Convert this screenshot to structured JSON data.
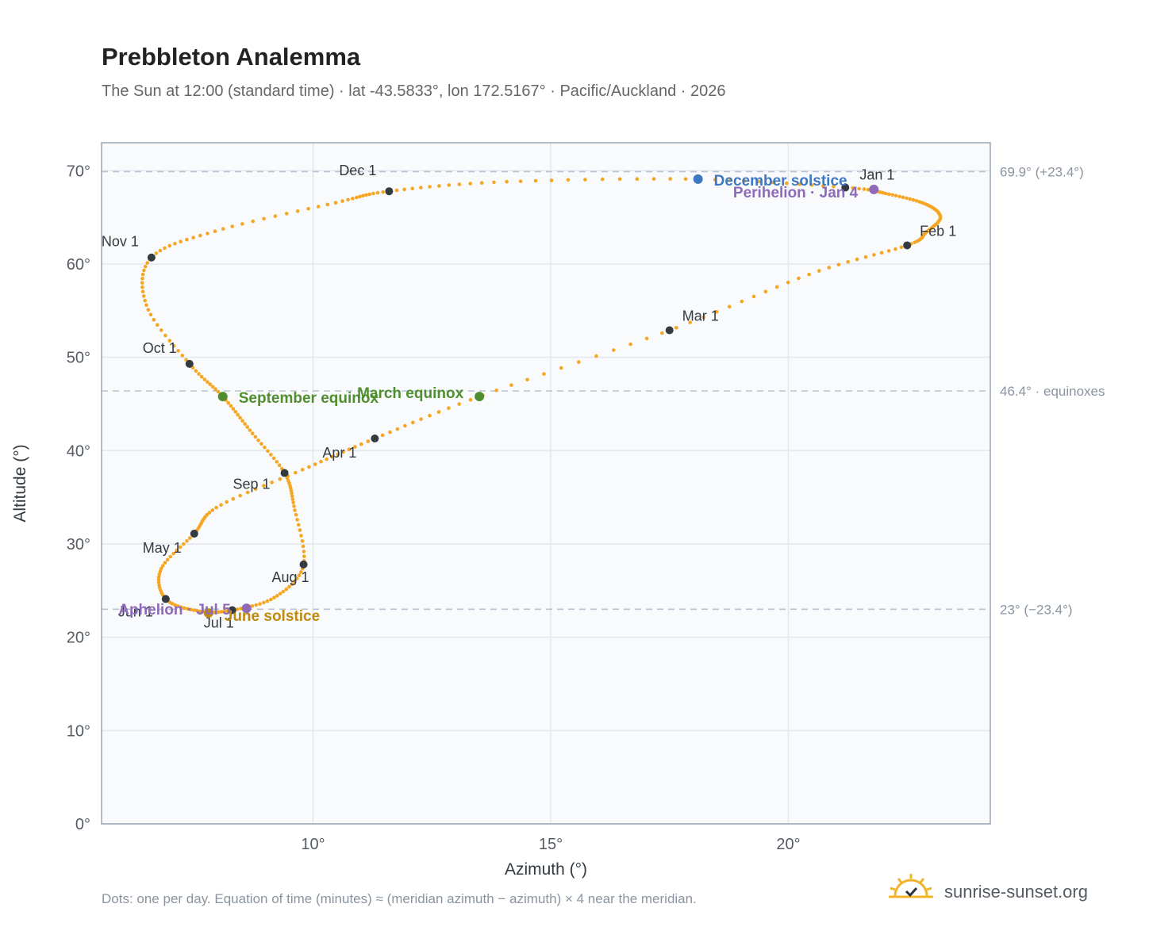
{
  "title": "Prebbleton Analemma",
  "subtitle": "The Sun at 12:00 (standard time) · lat -43.5833°, lon 172.5167° · Pacific/Auckland · 2026",
  "footnote": "Dots: one per day. Equation of time (minutes) ≈ (meridian azimuth − azimuth) × 4 near the meridian.",
  "brand": {
    "name": "sunrise-sunset.org",
    "logo_icon": "sun-check-icon"
  },
  "colors": {
    "path": "#f5a623",
    "month_marker": "#333a40",
    "december_solstice": "#3d78c0",
    "june_solstice": "#c08a0e",
    "equinox": "#4f8f2f",
    "apsis": "#8e6ab8",
    "reference_line": "#b8c4d2",
    "plot_bg": "#f8fafc",
    "grid": "#e3e8ee",
    "frame": "#9aa5b2"
  },
  "chart_data": {
    "type": "scatter",
    "xlabel": "Azimuth (°)",
    "ylabel": "Altitude (°)",
    "xlim": [
      5.55,
      24.25
    ],
    "ylim": [
      0,
      73
    ],
    "x_ticks": [
      10,
      15,
      20
    ],
    "y_ticks": [
      0,
      10,
      20,
      30,
      40,
      50,
      60,
      70
    ],
    "x_tick_labels": [
      "10°",
      "15°",
      "20°"
    ],
    "y_tick_labels": [
      "0°",
      "10°",
      "20°",
      "30°",
      "40°",
      "50°",
      "60°",
      "70°"
    ],
    "grid": true,
    "path_points": [
      [
        21.2,
        68.2
      ],
      [
        22.1,
        67.5
      ],
      [
        22.9,
        66.4
      ],
      [
        23.2,
        65.0
      ],
      [
        22.9,
        63.4
      ],
      [
        22.5,
        62.0
      ],
      [
        20.5,
        59.0
      ],
      [
        17.5,
        52.9
      ],
      [
        13.5,
        45.8
      ],
      [
        11.3,
        41.3
      ],
      [
        9.8,
        38.0
      ],
      [
        8.0,
        34.0
      ],
      [
        7.5,
        31.1
      ],
      [
        6.8,
        27.3
      ],
      [
        6.9,
        24.1
      ],
      [
        7.6,
        22.8
      ],
      [
        8.3,
        22.9
      ],
      [
        9.2,
        24.3
      ],
      [
        9.8,
        27.8
      ],
      [
        9.6,
        34.0
      ],
      [
        9.4,
        37.6
      ],
      [
        8.7,
        42.0
      ],
      [
        8.1,
        45.8
      ],
      [
        7.4,
        49.3
      ],
      [
        6.5,
        55.5
      ],
      [
        6.6,
        60.7
      ],
      [
        8.0,
        63.6
      ],
      [
        10.5,
        66.6
      ],
      [
        11.6,
        67.8
      ],
      [
        14.0,
        68.8
      ],
      [
        18.0,
        69.1
      ],
      [
        21.2,
        68.2
      ]
    ],
    "month_markers": [
      {
        "label": "Jan 1",
        "x": 21.2,
        "y": 68.2
      },
      {
        "label": "Feb 1",
        "x": 22.5,
        "y": 62.0
      },
      {
        "label": "Mar 1",
        "x": 17.5,
        "y": 52.9
      },
      {
        "label": "Apr 1",
        "x": 11.3,
        "y": 41.3
      },
      {
        "label": "May 1",
        "x": 7.5,
        "y": 31.1
      },
      {
        "label": "Jun 1",
        "x": 6.9,
        "y": 24.1
      },
      {
        "label": "Jul 1",
        "x": 8.3,
        "y": 22.9
      },
      {
        "label": "Aug 1",
        "x": 9.8,
        "y": 27.8
      },
      {
        "label": "Sep 1",
        "x": 9.4,
        "y": 37.6
      },
      {
        "label": "Oct 1",
        "x": 7.4,
        "y": 49.3
      },
      {
        "label": "Nov 1",
        "x": 6.6,
        "y": 60.7
      },
      {
        "label": "Dec 1",
        "x": 11.6,
        "y": 67.8
      }
    ],
    "events": [
      {
        "label": "December solstice",
        "x": 18.1,
        "y": 69.1,
        "kind": "december_solstice"
      },
      {
        "label": "Perihelion · Jan 4",
        "x": 21.8,
        "y": 68.0,
        "kind": "apsis"
      },
      {
        "label": "March equinox",
        "x": 13.5,
        "y": 45.8,
        "kind": "equinox"
      },
      {
        "label": "September equinox",
        "x": 8.1,
        "y": 45.8,
        "kind": "equinox"
      },
      {
        "label": "June solstice",
        "x": 7.8,
        "y": 22.6,
        "kind": "june_solstice"
      },
      {
        "label": "Aphelion · Jul 5",
        "x": 8.6,
        "y": 23.1,
        "kind": "apsis"
      }
    ],
    "reference_lines": [
      {
        "y": 69.9,
        "label": "69.9° (+23.4°)"
      },
      {
        "y": 46.4,
        "label": "46.4° · equinoxes"
      },
      {
        "y": 23.0,
        "label": "23° (−23.4°)"
      }
    ]
  }
}
